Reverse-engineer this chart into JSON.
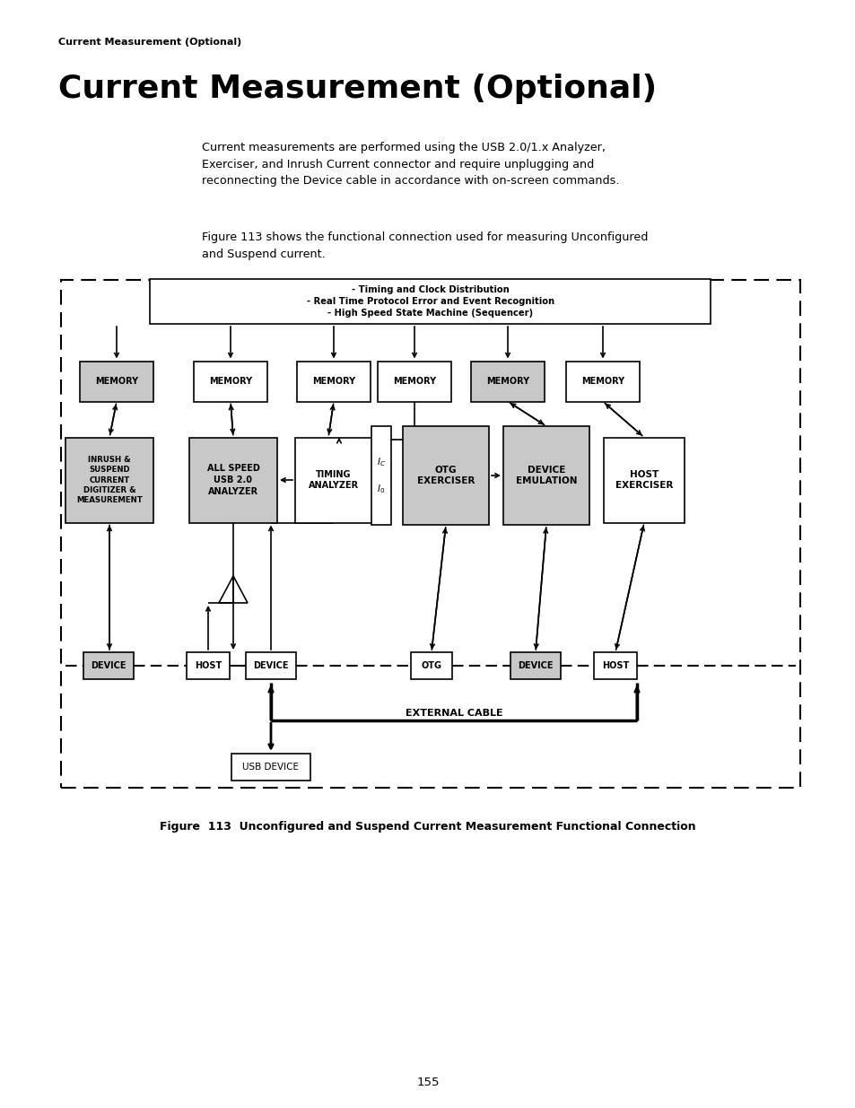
{
  "page_title": "Current Measurement (Optional)",
  "main_title": "Current Measurement (Optional)",
  "body_text_1": "Current measurements are performed using the USB 2.0/1.x Analyzer,\nExerciser, and Inrush Current connector and require unplugging and\nreconnecting the Device cable in accordance with on-screen commands.",
  "body_text_2": "Figure 113 shows the functional connection used for measuring Unconfigured\nand Suspend current.",
  "fig_caption": "Figure  113  Unconfigured and Suspend Current Measurement Functional Connection",
  "page_num": "155",
  "top_box_text": "- Timing and Clock Distribution\n- Real Time Protocol Error and Event Recognition\n- High Speed State Machine (Sequencer)",
  "bg_color": "#ffffff",
  "gray_fill": "#c8c8c8",
  "white_fill": "#ffffff"
}
